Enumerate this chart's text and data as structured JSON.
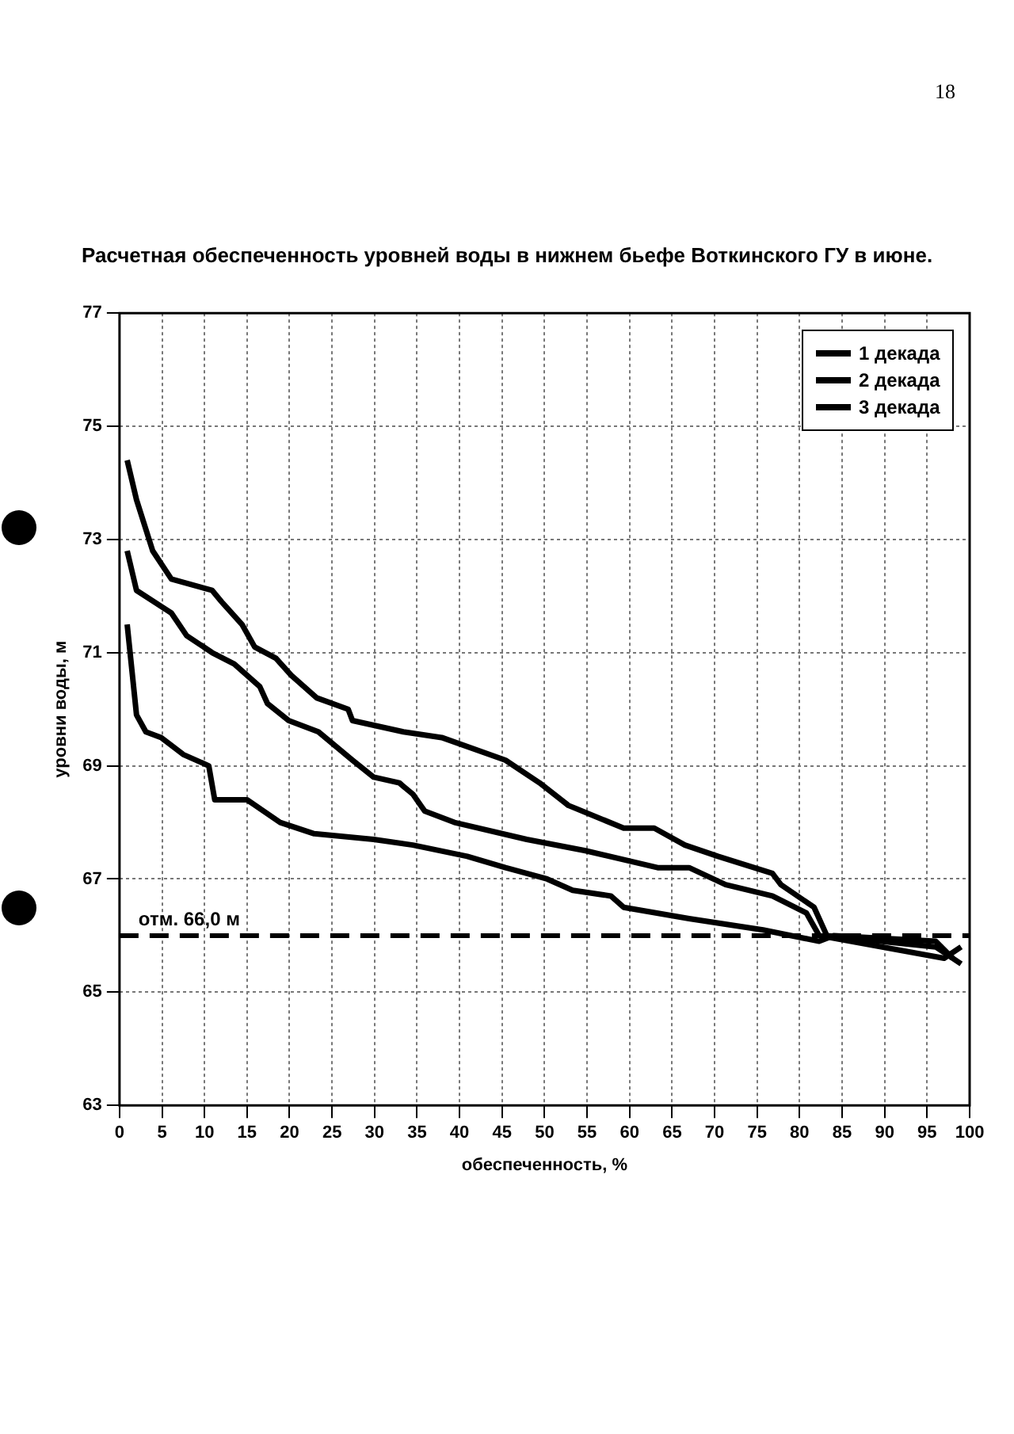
{
  "chart_data": {
    "type": "line",
    "title": "Расчетная обеспеченность уровней воды в нижнем бьефе Воткинского ГУ в июне.",
    "xlabel": "обеспеченность, %",
    "ylabel": "уровни воды, м",
    "annotations": [
      "18"
    ],
    "xlim": [
      0,
      100
    ],
    "xticks": [
      0,
      5,
      10,
      15,
      20,
      25,
      30,
      35,
      40,
      45,
      50,
      55,
      60,
      65,
      70,
      75,
      80,
      85,
      90,
      95,
      100
    ],
    "ylim": [
      63,
      77
    ],
    "yticks": [
      63,
      65,
      67,
      69,
      71,
      73,
      75,
      77
    ],
    "grid": true,
    "legend": "top right",
    "marker": "none",
    "line_style": "solid",
    "ref_lines": [
      {
        "axis": "y",
        "value": 66.0,
        "label": "отм. 66,0 м",
        "color": "#000000",
        "line_style": "dashed"
      }
    ],
    "series": [
      {
        "name": "1 декада",
        "color": "#000000",
        "x": [
          0.9,
          2,
          3.9,
          6.1,
          10.9,
          12,
          14.4,
          15.9,
          18.4,
          20.2,
          23.2,
          26.9,
          27.4,
          33.4,
          37.9,
          45.4,
          49.4,
          52.8,
          59.3,
          62.9,
          66.5,
          70.4,
          76.8,
          77.8,
          81.7,
          83.2,
          96,
          99
        ],
        "values": [
          74.4,
          73.7,
          72.8,
          72.3,
          72.1,
          71.9,
          71.5,
          71.1,
          70.9,
          70.6,
          70.2,
          70.0,
          69.8,
          69.6,
          69.5,
          69.1,
          68.7,
          68.3,
          67.9,
          67.9,
          67.6,
          67.4,
          67.1,
          66.9,
          66.5,
          66.0,
          65.8,
          65.5
        ]
      },
      {
        "name": "2 декада",
        "color": "#000000",
        "x": [
          0.9,
          2,
          6.1,
          7.9,
          10.9,
          13.5,
          16.5,
          17.4,
          19.9,
          23.4,
          27.4,
          29.9,
          32.9,
          34.5,
          35.9,
          39.4,
          47.9,
          54.8,
          63.3,
          67,
          71.3,
          76.8,
          80.8,
          82.3,
          97,
          99
        ],
        "values": [
          72.8,
          72.1,
          71.7,
          71.3,
          71.0,
          70.8,
          70.4,
          70.1,
          69.8,
          69.6,
          69.1,
          68.8,
          68.7,
          68.5,
          68.2,
          68.0,
          67.7,
          67.5,
          67.2,
          67.2,
          66.9,
          66.7,
          66.4,
          66.0,
          65.6,
          65.8
        ]
      },
      {
        "name": "3 декада",
        "color": "#000000",
        "x": [
          0.9,
          2,
          3.1,
          4.9,
          7.5,
          10.5,
          11.2,
          15,
          18.9,
          22.9,
          29.9,
          34.5,
          40.9,
          45.4,
          50.3,
          53.3,
          57.8,
          59.3,
          67,
          75.7,
          82.3,
          84,
          96,
          98
        ],
        "values": [
          71.5,
          69.9,
          69.6,
          69.5,
          69.2,
          69.0,
          68.4,
          68.4,
          68.0,
          67.8,
          67.7,
          67.6,
          67.4,
          67.2,
          67.0,
          66.8,
          66.7,
          66.5,
          66.3,
          66.1,
          65.9,
          66.0,
          65.9,
          65.6
        ]
      }
    ]
  }
}
